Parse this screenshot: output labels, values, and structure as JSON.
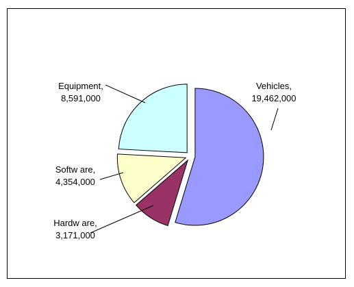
{
  "chart_data": {
    "type": "pie",
    "title": "",
    "categories": [
      "Vehicles",
      "Hardw are",
      "Softw are",
      "Equipment"
    ],
    "values": [
      19462000,
      3171000,
      4354000,
      8591000
    ],
    "value_labels": [
      "19,462,000",
      "3,171,000",
      "4,354,000",
      "8,591,000"
    ],
    "colors": [
      "#9999ff",
      "#993366",
      "#ffffcc",
      "#ccffff"
    ],
    "exploded": true,
    "legend": "none"
  }
}
